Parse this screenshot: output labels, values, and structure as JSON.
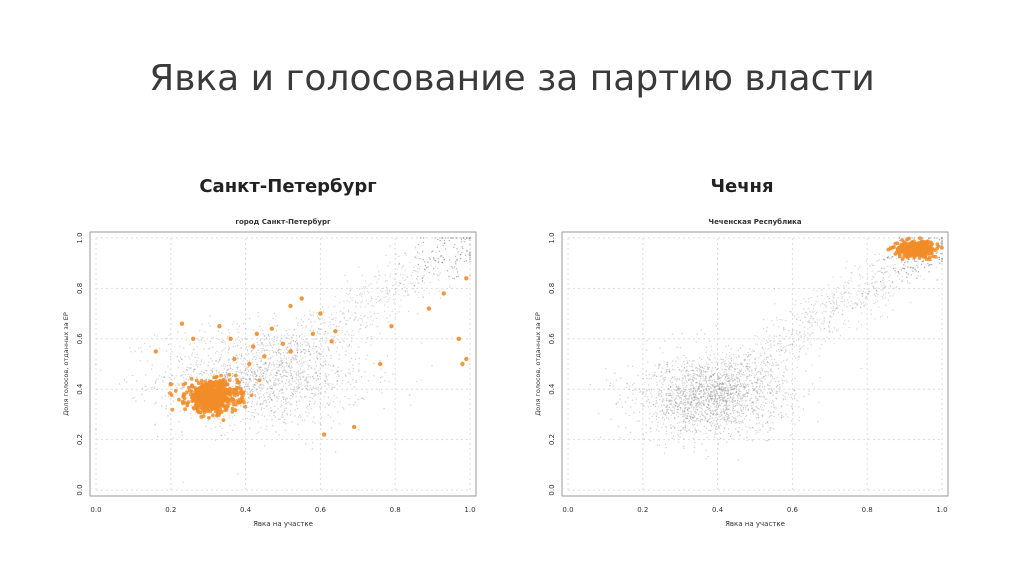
{
  "slide": {
    "title": "Явка и голосование за партию власти"
  },
  "panels": [
    {
      "heading": "Санкт-Петербург"
    },
    {
      "heading": "Чечня"
    }
  ],
  "chart_data": [
    {
      "type": "scatter",
      "title": "город Санкт-Петербург",
      "xlabel": "Явка на участке",
      "ylabel": "Доля голосов, отданных за ЕР",
      "xlim": [
        0,
        1
      ],
      "ylim": [
        0,
        1
      ],
      "xticks": [
        "0.0",
        "0.2",
        "0.4",
        "0.6",
        "0.8",
        "1.0"
      ],
      "yticks": [
        "0.0",
        "0.2",
        "0.4",
        "0.6",
        "0.8",
        "1.0"
      ],
      "grid": true,
      "series": [
        {
          "color": "#808080",
          "cloud": {
            "center": [
              0.45,
              0.45
            ],
            "spread": [
              0.14,
              0.1
            ],
            "count": 1400
          },
          "diagonal_band": {
            "from": [
              0.25,
              0.3
            ],
            "to": [
              1.0,
              1.0
            ],
            "count": 700
          }
        },
        {
          "color": "#f28c28",
          "cloud": {
            "center": [
              0.31,
              0.37
            ],
            "spread": [
              0.035,
              0.03
            ],
            "count": 600
          },
          "outliers": [
            [
              0.55,
              0.76
            ],
            [
              0.52,
              0.73
            ],
            [
              0.6,
              0.7
            ],
            [
              0.64,
              0.63
            ],
            [
              0.63,
              0.59
            ],
            [
              0.58,
              0.62
            ],
            [
              0.47,
              0.64
            ],
            [
              0.43,
              0.62
            ],
            [
              0.42,
              0.57
            ],
            [
              0.5,
              0.58
            ],
            [
              0.23,
              0.66
            ],
            [
              0.26,
              0.6
            ],
            [
              0.33,
              0.65
            ],
            [
              0.36,
              0.6
            ],
            [
              0.45,
              0.53
            ],
            [
              0.52,
              0.55
            ],
            [
              0.79,
              0.65
            ],
            [
              0.97,
              0.6
            ],
            [
              0.99,
              0.52
            ],
            [
              0.98,
              0.5
            ],
            [
              0.99,
              0.84
            ],
            [
              0.89,
              0.72
            ],
            [
              0.93,
              0.78
            ],
            [
              0.76,
              0.5
            ],
            [
              0.69,
              0.25
            ],
            [
              0.61,
              0.22
            ],
            [
              0.16,
              0.55
            ],
            [
              0.2,
              0.42
            ],
            [
              0.41,
              0.5
            ],
            [
              0.37,
              0.52
            ]
          ]
        }
      ]
    },
    {
      "type": "scatter",
      "title": "Чеченская Республика",
      "xlabel": "Явка на участке",
      "ylabel": "Доля голосов, отданных за ЕР",
      "xlim": [
        0,
        1
      ],
      "ylim": [
        0,
        1
      ],
      "xticks": [
        "0.0",
        "0.2",
        "0.4",
        "0.6",
        "0.8",
        "1.0"
      ],
      "yticks": [
        "0.0",
        "0.2",
        "0.4",
        "0.6",
        "0.8",
        "1.0"
      ],
      "grid": true,
      "series": [
        {
          "color": "#808080",
          "cloud": {
            "center": [
              0.38,
              0.37
            ],
            "spread": [
              0.1,
              0.08
            ],
            "count": 1800
          },
          "diagonal_band": {
            "from": [
              0.3,
              0.3
            ],
            "to": [
              1.0,
              1.0
            ],
            "count": 900
          }
        },
        {
          "color": "#f28c28",
          "cloud": {
            "center": [
              0.93,
              0.955
            ],
            "spread": [
              0.025,
              0.015
            ],
            "count": 350
          },
          "outliers": []
        }
      ]
    }
  ]
}
